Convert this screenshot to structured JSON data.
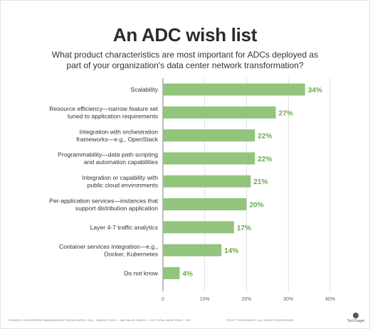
{
  "title": "An ADC wish list",
  "subtitle": "What product characteristics are most important for ADCs deployed as part of your organization's data center network transformation?",
  "footer": {
    "source": "SOURCE: ENTERPRISE MANAGEMENT ASSOCIATES, INC.; SAMPLE SIZE = 186 VALID CASES + 191 TOTAL MENTIONS + 367",
    "copyright": "©2017 TECHTARGET. ALL RIGHTS RESERVED",
    "brand": "TechTarget"
  },
  "colors": {
    "bar": "#92c47d",
    "value_label": "#6aa84f",
    "grid": "#d9d9d9",
    "axis": "#7f7f7f"
  },
  "chart_data": {
    "type": "bar",
    "orientation": "horizontal",
    "categories": [
      "Scalability",
      "Resource efficiency—narrow feature set tuned to application requirements",
      "Integration with orchestration frameworks—e.g., OpenStack",
      "Programmability—data path scripting and automation capabilities",
      "Integration or capability with public cloud environments",
      "Per-application services—instances that support distribution application",
      "Layer 4-7 traffic analytics",
      "Container services integration—e.g., Docker, Kubernetes",
      "Do not know"
    ],
    "category_lines": [
      [
        "Scalability"
      ],
      [
        "Resource efficiency—narrow feature set",
        "tuned to application requirements"
      ],
      [
        "Integration with orchestration",
        "frameworks—e.g., OpenStack"
      ],
      [
        "Programmability—data path scripting",
        "and automation capabilities"
      ],
      [
        "Integration or capability with",
        "public cloud environments"
      ],
      [
        "Per-application services—instances that",
        "support distribution application"
      ],
      [
        "Layer 4-7 traffic analytics"
      ],
      [
        "Container services integration—e.g.,",
        "Docker, Kubernetes"
      ],
      [
        "Do not know"
      ]
    ],
    "values": [
      34,
      27,
      22,
      22,
      21,
      20,
      17,
      14,
      4
    ],
    "value_labels": [
      "34%",
      "27%",
      "22%",
      "22%",
      "21%",
      "20%",
      "17%",
      "14%",
      "4%"
    ],
    "xlim": [
      0,
      40
    ],
    "xticks": [
      0,
      10,
      20,
      30,
      40
    ],
    "xtick_labels": [
      "0",
      "10%",
      "20%",
      "30%",
      "40%"
    ],
    "xlabel": "",
    "ylabel": "",
    "grid": true
  }
}
